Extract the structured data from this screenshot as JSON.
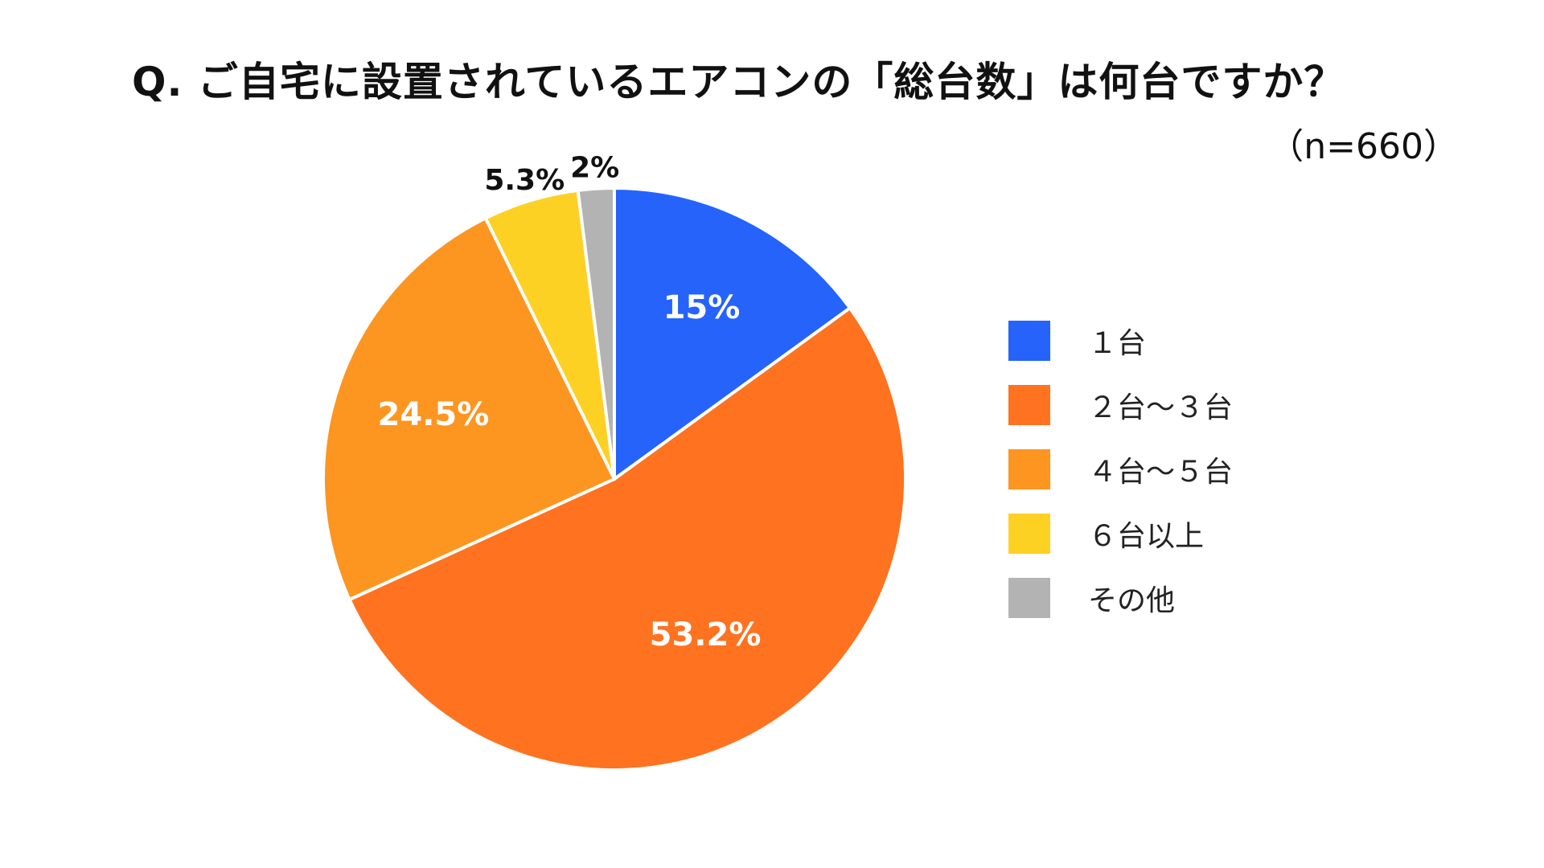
{
  "title": "Q.  ご自宅に設置されているエアコンの「総台数」は何台ですか？",
  "sample_size": "（n=660）",
  "chart_data": {
    "type": "pie",
    "title": "Q.  ご自宅に設置されているエアコンの「総台数」は何台ですか？",
    "subtitle": "（n=660）",
    "start_angle": "12 o'clock",
    "direction": "clockwise",
    "legend_position": "right",
    "slices": [
      {
        "label": "１台",
        "value": 15,
        "display": "15%",
        "color": "#2563fb",
        "label_placement": "inside",
        "label_color": "#ffffff"
      },
      {
        "label": "２台～３台",
        "value": 53.2,
        "display": "53.2%",
        "color": "#ff721f",
        "label_placement": "inside",
        "label_color": "#ffffff"
      },
      {
        "label": "４台～５台",
        "value": 24.5,
        "display": "24.5%",
        "color": "#fd9521",
        "label_placement": "inside",
        "label_color": "#ffffff"
      },
      {
        "label": "６台以上",
        "value": 5.3,
        "display": "5.3%",
        "color": "#fdd024",
        "label_placement": "outside",
        "label_color": "#111111"
      },
      {
        "label": "その他",
        "value": 2,
        "display": "2%",
        "color": "#b3b3b3",
        "label_placement": "outside",
        "label_color": "#111111"
      }
    ]
  }
}
